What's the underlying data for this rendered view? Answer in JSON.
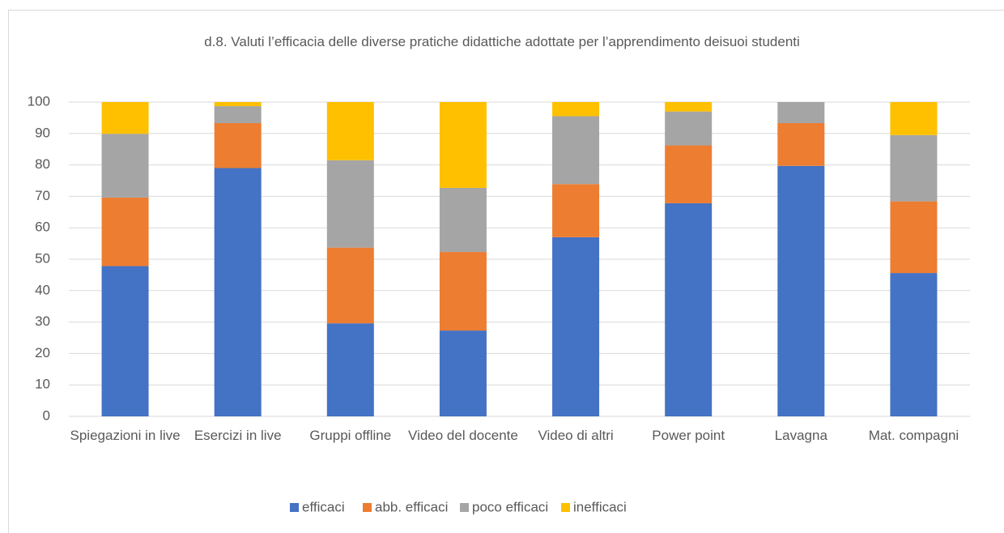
{
  "chart_data": {
    "type": "stacked_bar",
    "title": "d.8.  Valuti l’efficacia delle diverse pratiche didattiche adottate per l’apprendimento deisuoi studenti",
    "categories": [
      "Spiegazioni in live",
      "Esercizi in live",
      "Gruppi offline",
      "Video del docente",
      "Video di altri",
      "Power point",
      "Lavagna",
      "Mat. compagni"
    ],
    "series": [
      {
        "name": "efficaci",
        "color": "#4472c4",
        "values": [
          47.8,
          79,
          29.6,
          27.3,
          57,
          67.8,
          79.7,
          45.6
        ]
      },
      {
        "name": "abb. efficaci",
        "color": "#ed7d31",
        "values": [
          21.8,
          14.3,
          24.1,
          25.0,
          16.9,
          18.4,
          13.6,
          22.8
        ]
      },
      {
        "name": "poco efficaci",
        "color": "#a5a5a5",
        "values": [
          20.3,
          5.4,
          27.8,
          20.4,
          21.6,
          10.8,
          6.7,
          21.1
        ]
      },
      {
        "name": "inefficaci",
        "color": "#ffc000",
        "values": [
          10.1,
          1.3,
          18.5,
          27.3,
          4.5,
          3.0,
          0,
          10.5
        ]
      }
    ],
    "ylim": [
      0,
      100
    ],
    "yticks": [
      0,
      10,
      20,
      30,
      40,
      50,
      60,
      70,
      80,
      90,
      100
    ],
    "grid": true,
    "legend": "bottom"
  }
}
